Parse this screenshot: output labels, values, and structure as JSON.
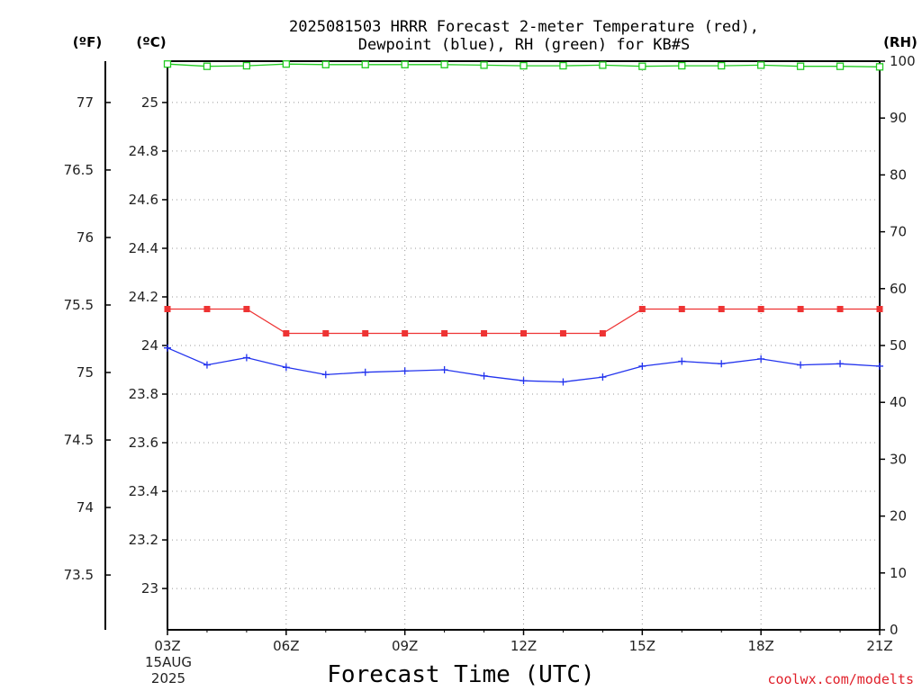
{
  "chart_data": {
    "type": "line",
    "title_line1": "2025081503 HRRR Forecast 2-meter Temperature (red),",
    "title_line2": "Dewpoint (blue), RH (green) for KB#S",
    "units_f": "(ºF)",
    "units_c": "(ºC)",
    "units_rh": "(RH)",
    "xlabel": "Forecast Time (UTC)",
    "credit": "coolwx.com/modelts",
    "x_hours": [
      3,
      4,
      5,
      6,
      7,
      8,
      9,
      10,
      11,
      12,
      13,
      14,
      15,
      16,
      17,
      18,
      19,
      20,
      21
    ],
    "x_tick_hours": [
      3,
      6,
      9,
      12,
      15,
      18,
      21
    ],
    "x_tick_labels": [
      "03Z",
      "06Z",
      "09Z",
      "12Z",
      "15Z",
      "18Z",
      "21Z"
    ],
    "x_date_label": [
      "15AUG",
      "2025"
    ],
    "xlim": [
      3,
      21
    ],
    "ylim_c": [
      22.83,
      25.17
    ],
    "ylim_rh": [
      0,
      100
    ],
    "yticks_c": [
      "23",
      "23.2",
      "23.4",
      "23.6",
      "23.8",
      "24",
      "24.2",
      "24.4",
      "24.6",
      "24.8",
      "25"
    ],
    "yticks_f": [
      "73.5",
      "74",
      "74.5",
      "75",
      "75.5",
      "76",
      "76.5",
      "77"
    ],
    "yticks_rh": [
      "0",
      "10",
      "20",
      "30",
      "40",
      "50",
      "60",
      "70",
      "80",
      "90",
      "100"
    ],
    "grid": true,
    "colors": {
      "temperature": "#ee3333",
      "dewpoint": "#2233ee",
      "rh": "#22cc22",
      "grid": "#999999"
    },
    "series": [
      {
        "name": "Temperature",
        "axis": "c",
        "marker": "filled-square",
        "values": [
          24.15,
          24.15,
          24.15,
          24.05,
          24.05,
          24.05,
          24.05,
          24.05,
          24.05,
          24.05,
          24.05,
          24.05,
          24.15,
          24.15,
          24.15,
          24.15,
          24.15,
          24.15,
          24.15
        ]
      },
      {
        "name": "Dewpoint",
        "axis": "c",
        "marker": "plus",
        "values": [
          23.99,
          23.92,
          23.95,
          23.91,
          23.88,
          23.89,
          23.895,
          23.9,
          23.875,
          23.855,
          23.85,
          23.87,
          23.915,
          23.935,
          23.925,
          23.945,
          23.92,
          23.925,
          23.915
        ]
      },
      {
        "name": "RH",
        "axis": "rh",
        "marker": "open-square",
        "values": [
          99.5,
          99.1,
          99.2,
          99.5,
          99.4,
          99.4,
          99.4,
          99.4,
          99.3,
          99.2,
          99.2,
          99.3,
          99.1,
          99.2,
          99.2,
          99.3,
          99.1,
          99.1,
          99
        ]
      }
    ]
  }
}
